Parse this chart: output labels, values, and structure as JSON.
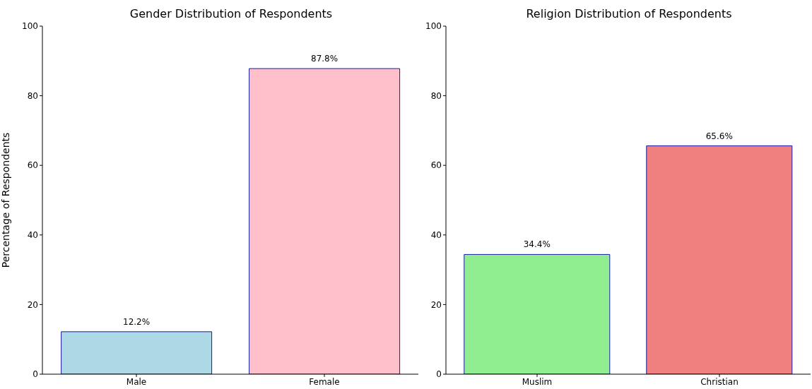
{
  "chart_data": [
    {
      "type": "bar",
      "title": "Gender Distribution of Respondents",
      "ylabel": "Percentage of Respondents",
      "categories": [
        "Male",
        "Female"
      ],
      "values": [
        12.2,
        87.8
      ],
      "colors": [
        "#add8e6",
        "#ffc0cb"
      ],
      "value_labels": [
        "12.2%",
        "87.8%"
      ],
      "ylim": [
        0,
        100
      ],
      "yticks": [
        0,
        20,
        40,
        60,
        80,
        100
      ],
      "grid": false,
      "legend": false
    },
    {
      "type": "bar",
      "title": "Religion Distribution of Respondents",
      "categories": [
        "Muslim",
        "Christian"
      ],
      "values": [
        34.4,
        65.6
      ],
      "colors": [
        "#90ee90",
        "#f08080"
      ],
      "value_labels": [
        "34.4%",
        "65.6%"
      ],
      "ylim": [
        0,
        100
      ],
      "yticks": [
        0,
        20,
        40,
        60,
        80,
        100
      ],
      "grid": false,
      "legend": false
    }
  ]
}
